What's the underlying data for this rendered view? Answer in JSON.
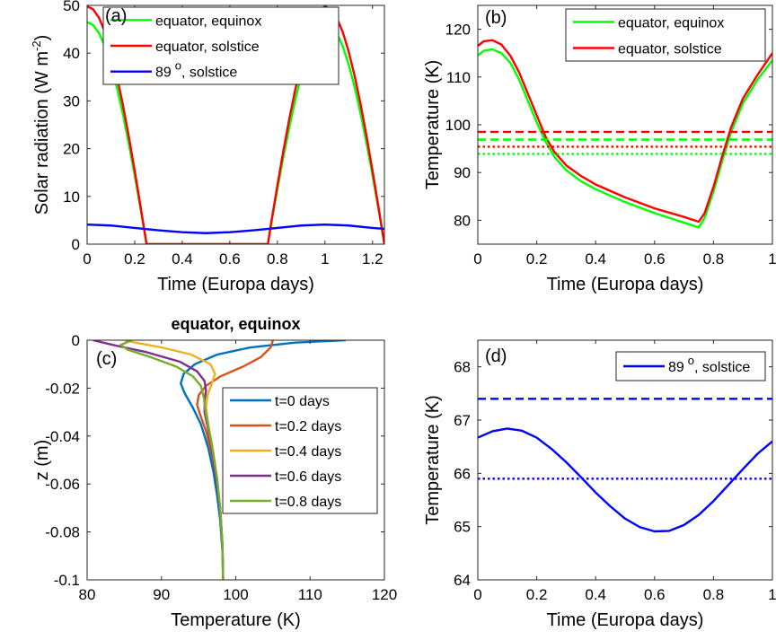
{
  "chart_data": [
    {
      "panel_label": "(a)",
      "type": "line",
      "title": "",
      "xlabel": "Time (Europa days)",
      "ylabel": "Solar radiation (W m -2)",
      "ylabel_parts": {
        "main": "Solar radiation (W m",
        "sup": "-2",
        "close": ")"
      },
      "xlim": [
        0,
        1.25
      ],
      "ylim": [
        0,
        50
      ],
      "xticks": [
        0,
        0.2,
        0.4,
        0.6,
        0.8,
        1,
        1.2
      ],
      "xtick_labels": [
        "0",
        "0.2",
        "0.4",
        "0.6",
        "0.8",
        "1",
        "1.2"
      ],
      "yticks": [
        0,
        10,
        20,
        30,
        40,
        50
      ],
      "ytick_labels": [
        "0",
        "10",
        "20",
        "30",
        "40",
        "50"
      ],
      "legend_position": "top",
      "series": [
        {
          "name": "equator, equinox",
          "color": "#00ff00",
          "style": "solid",
          "x": [
            0,
            0.025,
            0.05,
            0.075,
            0.1,
            0.125,
            0.15,
            0.175,
            0.2,
            0.225,
            0.25,
            0.26,
            0.75,
            0.76,
            0.775,
            0.8,
            0.825,
            0.85,
            0.875,
            0.9,
            0.925,
            0.95,
            0.975,
            1.0,
            1.025,
            1.05,
            1.075,
            1.1,
            1.125,
            1.15,
            1.175,
            1.2,
            1.225,
            1.25
          ],
          "y": [
            46.5,
            45.9,
            44.2,
            41.4,
            37.6,
            32.9,
            27.3,
            21.1,
            14.4,
            7.3,
            0,
            0,
            0,
            0,
            4.5,
            11.5,
            18.2,
            24.4,
            30.2,
            35.3,
            39.6,
            43.2,
            45.5,
            46.5,
            45.9,
            44.2,
            41.4,
            37.6,
            32.9,
            27.3,
            21.1,
            14.4,
            7.3,
            0
          ]
        },
        {
          "name": "equator, solstice",
          "color": "#ff0000",
          "style": "solid",
          "x": [
            0,
            0.025,
            0.05,
            0.075,
            0.1,
            0.125,
            0.15,
            0.175,
            0.2,
            0.225,
            0.25,
            0.26,
            0.75,
            0.76,
            0.775,
            0.8,
            0.825,
            0.85,
            0.875,
            0.9,
            0.925,
            0.95,
            0.975,
            1.0,
            1.025,
            1.05,
            1.075,
            1.1,
            1.125,
            1.15,
            1.175,
            1.2,
            1.225,
            1.25
          ],
          "y": [
            49.8,
            49.2,
            47.4,
            44.4,
            40.3,
            35.2,
            29.3,
            22.6,
            15.4,
            7.8,
            0,
            0,
            0,
            0,
            4.8,
            12.3,
            19.5,
            26.2,
            32.3,
            37.8,
            42.4,
            46.2,
            48.7,
            49.8,
            49.2,
            47.4,
            44.4,
            40.3,
            35.2,
            29.3,
            22.6,
            15.4,
            7.8,
            0
          ]
        },
        {
          "name": "89 o, solstice",
          "name_parts": {
            "main": "89",
            "sup": "o",
            "rest": ", solstice"
          },
          "color": "#0000ff",
          "style": "solid",
          "x": [
            0,
            0.1,
            0.2,
            0.3,
            0.4,
            0.5,
            0.6,
            0.7,
            0.8,
            0.9,
            1.0,
            1.1,
            1.2,
            1.25
          ],
          "y": [
            4.1,
            3.9,
            3.4,
            2.9,
            2.5,
            2.3,
            2.5,
            2.9,
            3.4,
            3.9,
            4.1,
            3.9,
            3.4,
            3.2
          ]
        }
      ]
    },
    {
      "panel_label": "(b)",
      "type": "line",
      "title": "",
      "xlabel": "Time (Europa days)",
      "ylabel": "Temperature (K)",
      "xlim": [
        0,
        1
      ],
      "ylim": [
        75,
        125
      ],
      "xticks": [
        0,
        0.2,
        0.4,
        0.6,
        0.8,
        1
      ],
      "xtick_labels": [
        "0",
        "0.2",
        "0.4",
        "0.6",
        "0.8",
        "1"
      ],
      "yticks": [
        80,
        90,
        100,
        110,
        120
      ],
      "ytick_labels": [
        "80",
        "90",
        "100",
        "110",
        "120"
      ],
      "legend_position": "top-right",
      "series": [
        {
          "name": "equator, equinox",
          "color": "#00ff00",
          "style": "solid",
          "in_legend": true,
          "x": [
            0,
            0.02,
            0.05,
            0.08,
            0.11,
            0.14,
            0.17,
            0.2,
            0.23,
            0.26,
            0.3,
            0.35,
            0.4,
            0.5,
            0.6,
            0.7,
            0.75,
            0.77,
            0.8,
            0.83,
            0.86,
            0.9,
            0.95,
            1.0
          ],
          "y": [
            114.5,
            115.5,
            115.8,
            115.0,
            113.0,
            109.5,
            105.0,
            100.5,
            96.5,
            93.3,
            90.5,
            88.2,
            86.5,
            83.8,
            81.5,
            79.5,
            78.5,
            80.5,
            86.0,
            92.5,
            98.5,
            104.5,
            109.5,
            113.5
          ]
        },
        {
          "name": "equator, solstice",
          "color": "#ff0000",
          "style": "solid",
          "in_legend": true,
          "x": [
            0,
            0.02,
            0.05,
            0.08,
            0.11,
            0.14,
            0.17,
            0.2,
            0.23,
            0.26,
            0.3,
            0.35,
            0.4,
            0.5,
            0.6,
            0.7,
            0.75,
            0.77,
            0.8,
            0.83,
            0.86,
            0.9,
            0.95,
            1.0
          ],
          "y": [
            116.5,
            117.5,
            117.7,
            116.8,
            114.5,
            111.0,
            106.5,
            102.0,
            97.5,
            94.3,
            91.5,
            89.3,
            87.5,
            84.8,
            82.5,
            80.7,
            79.7,
            81.5,
            87.0,
            93.5,
            99.5,
            105.5,
            110.5,
            115.0
          ]
        },
        {
          "name": "",
          "color": "#ff0000",
          "style": "dashed",
          "in_legend": false,
          "x": [
            0,
            1
          ],
          "y": [
            98.5,
            98.5
          ]
        },
        {
          "name": "",
          "color": "#00ff00",
          "style": "dashed",
          "in_legend": false,
          "x": [
            0,
            1
          ],
          "y": [
            96.9,
            96.9
          ]
        },
        {
          "name": "",
          "color": "#ff0000",
          "style": "dotted",
          "in_legend": false,
          "x": [
            0,
            1
          ],
          "y": [
            95.4,
            95.4
          ]
        },
        {
          "name": "",
          "color": "#00ff00",
          "style": "dotted",
          "in_legend": false,
          "x": [
            0,
            1
          ],
          "y": [
            93.9,
            93.9
          ]
        }
      ]
    },
    {
      "panel_label": "(c)",
      "type": "line",
      "title": "equator, equinox",
      "xlabel": "Temperature (K)",
      "ylabel": "z (m)",
      "xlim": [
        80,
        120
      ],
      "ylim": [
        -0.1,
        0
      ],
      "xticks": [
        80,
        90,
        100,
        110,
        120
      ],
      "xtick_labels": [
        "80",
        "90",
        "100",
        "110",
        "120"
      ],
      "yticks": [
        0,
        -0.02,
        -0.04,
        -0.06,
        -0.08,
        -0.1
      ],
      "ytick_labels": [
        "0",
        "-0.02",
        "-0.04",
        "-0.06",
        "-0.08",
        "-0.1"
      ],
      "legend_position": "right",
      "series": [
        {
          "name": "t=0 days",
          "color": "#0072bd",
          "style": "solid",
          "x": [
            114.8,
            108.0,
            102.0,
            97.5,
            94.5,
            93.0,
            92.6,
            93.1,
            94.2,
            95.3,
            96.3,
            97.0,
            97.5,
            97.9,
            98.2,
            98.3
          ],
          "y": [
            0,
            -0.001,
            -0.003,
            -0.006,
            -0.01,
            -0.014,
            -0.018,
            -0.022,
            -0.028,
            -0.035,
            -0.045,
            -0.055,
            -0.065,
            -0.075,
            -0.088,
            -0.1
          ]
        },
        {
          "name": "t=0.2 days",
          "color": "#d95319",
          "style": "solid",
          "x": [
            105.0,
            104.7,
            103.4,
            101.0,
            98.0,
            96.0,
            95.0,
            94.8,
            95.2,
            96.0,
            96.8,
            97.4,
            97.9,
            98.2,
            98.3
          ],
          "y": [
            0,
            -0.003,
            -0.007,
            -0.011,
            -0.015,
            -0.019,
            -0.023,
            -0.027,
            -0.031,
            -0.038,
            -0.048,
            -0.058,
            -0.07,
            -0.085,
            -0.1
          ]
        },
        {
          "name": "t=0.4 days",
          "color": "#edb120",
          "style": "solid",
          "x": [
            85.0,
            86.5,
            90.0,
            94.0,
            96.6,
            97.2,
            96.8,
            96.2,
            96.0,
            96.3,
            96.9,
            97.5,
            97.9,
            98.2,
            98.3
          ],
          "y": [
            0,
            -0.001,
            -0.003,
            -0.006,
            -0.01,
            -0.014,
            -0.018,
            -0.023,
            -0.028,
            -0.035,
            -0.045,
            -0.058,
            -0.07,
            -0.085,
            -0.1
          ]
        },
        {
          "name": "t=0.6 days",
          "color": "#7e2f8e",
          "style": "solid",
          "x": [
            80.8,
            83.5,
            88.0,
            92.5,
            94.8,
            95.8,
            96.0,
            95.8,
            95.8,
            96.2,
            96.8,
            97.4,
            97.9,
            98.2,
            98.3
          ],
          "y": [
            0,
            -0.002,
            -0.005,
            -0.009,
            -0.013,
            -0.017,
            -0.021,
            -0.025,
            -0.03,
            -0.036,
            -0.046,
            -0.058,
            -0.07,
            -0.085,
            -0.1
          ]
        },
        {
          "name": "t=0.8 days",
          "color": "#77ac30",
          "style": "solid",
          "x": [
            86.0,
            84.5,
            85.5,
            88.5,
            92.0,
            94.2,
            95.3,
            95.7,
            95.9,
            96.3,
            96.9,
            97.5,
            97.9,
            98.2,
            98.3
          ],
          "y": [
            0,
            -0.002,
            -0.004,
            -0.007,
            -0.011,
            -0.015,
            -0.019,
            -0.024,
            -0.029,
            -0.036,
            -0.046,
            -0.058,
            -0.07,
            -0.085,
            -0.1
          ]
        }
      ]
    },
    {
      "panel_label": "(d)",
      "type": "line",
      "title": "",
      "xlabel": "Time (Europa days)",
      "ylabel": "Temperature (K)",
      "xlim": [
        0,
        1
      ],
      "ylim": [
        64,
        68.5
      ],
      "xticks": [
        0,
        0.2,
        0.4,
        0.6,
        0.8,
        1
      ],
      "xtick_labels": [
        "0",
        "0.2",
        "0.4",
        "0.6",
        "0.8",
        "1"
      ],
      "yticks": [
        64,
        65,
        66,
        67,
        68
      ],
      "ytick_labels": [
        "64",
        "65",
        "66",
        "67",
        "68"
      ],
      "legend_position": "top-right",
      "series": [
        {
          "name": "89 o, solstice",
          "name_parts": {
            "main": "89",
            "sup": "o",
            "rest": ", solstice"
          },
          "color": "#0000ff",
          "style": "solid",
          "in_legend": true,
          "x": [
            0,
            0.05,
            0.1,
            0.15,
            0.2,
            0.25,
            0.3,
            0.35,
            0.4,
            0.45,
            0.5,
            0.55,
            0.6,
            0.65,
            0.7,
            0.75,
            0.8,
            0.85,
            0.9,
            0.95,
            1.0
          ],
          "y": [
            66.67,
            66.79,
            66.84,
            66.8,
            66.67,
            66.46,
            66.21,
            65.93,
            65.64,
            65.38,
            65.15,
            64.99,
            64.91,
            64.92,
            65.03,
            65.22,
            65.48,
            65.78,
            66.08,
            66.37,
            66.6
          ]
        },
        {
          "name": "",
          "color": "#0000ff",
          "style": "dashed",
          "in_legend": false,
          "x": [
            0,
            1
          ],
          "y": [
            67.4,
            67.4
          ]
        },
        {
          "name": "",
          "color": "#0000ff",
          "style": "dotted",
          "in_legend": false,
          "x": [
            0,
            1
          ],
          "y": [
            65.9,
            65.9
          ]
        }
      ]
    }
  ]
}
